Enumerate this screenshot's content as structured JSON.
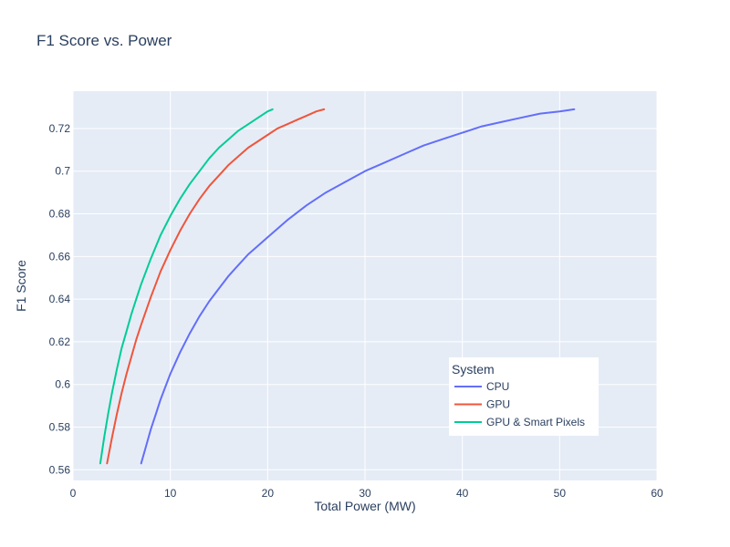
{
  "chart_data": {
    "type": "line",
    "title": "F1 Score vs. Power",
    "xlabel": "Total Power (MW)",
    "ylabel": "F1 Score",
    "xlim": [
      0,
      60
    ],
    "ylim": [
      0.555,
      0.7375
    ],
    "x_ticks": [
      0,
      10,
      20,
      30,
      40,
      50,
      60
    ],
    "x_tick_labels": [
      "0",
      "10",
      "20",
      "30",
      "40",
      "50",
      "60"
    ],
    "y_ticks": [
      0.56,
      0.58,
      0.6,
      0.62,
      0.64,
      0.66,
      0.68,
      0.7,
      0.72
    ],
    "y_tick_labels": [
      "0.56",
      "0.58",
      "0.6",
      "0.62",
      "0.64",
      "0.66",
      "0.68",
      "0.7",
      "0.72"
    ],
    "grid": true,
    "legend": {
      "title": "System",
      "placement": "bottom-right"
    },
    "background_color": "#e5ecf6",
    "series": [
      {
        "name": "CPU",
        "color": "#636efa",
        "x": [
          7.0,
          7.5,
          8.0,
          8.5,
          9.0,
          9.5,
          10.0,
          10.5,
          11.0,
          12.0,
          13.0,
          14.0,
          15.0,
          16.0,
          17.0,
          18.0,
          19.0,
          20.0,
          22.0,
          24.0,
          26.0,
          28.0,
          30.0,
          32.0,
          34.0,
          36.0,
          38.0,
          40.0,
          42.0,
          44.0,
          46.0,
          48.0,
          50.0,
          51.5
        ],
        "y": [
          0.563,
          0.571,
          0.579,
          0.586,
          0.593,
          0.599,
          0.605,
          0.61,
          0.615,
          0.624,
          0.632,
          0.639,
          0.645,
          0.651,
          0.656,
          0.661,
          0.665,
          0.669,
          0.677,
          0.684,
          0.69,
          0.695,
          0.7,
          0.704,
          0.708,
          0.712,
          0.715,
          0.718,
          0.721,
          0.723,
          0.725,
          0.727,
          0.728,
          0.729
        ]
      },
      {
        "name": "GPU",
        "color": "#ef553b",
        "x": [
          3.5,
          4.0,
          4.5,
          5.0,
          5.5,
          6.0,
          6.5,
          7.0,
          8.0,
          9.0,
          10.0,
          11.0,
          12.0,
          13.0,
          14.0,
          15.0,
          16.0,
          17.0,
          18.0,
          19.0,
          20.0,
          21.0,
          22.0,
          23.0,
          24.0,
          25.0,
          25.8
        ],
        "y": [
          0.563,
          0.575,
          0.586,
          0.596,
          0.605,
          0.613,
          0.621,
          0.628,
          0.641,
          0.653,
          0.663,
          0.672,
          0.68,
          0.687,
          0.693,
          0.698,
          0.703,
          0.707,
          0.711,
          0.714,
          0.717,
          0.72,
          0.722,
          0.724,
          0.726,
          0.728,
          0.729
        ]
      },
      {
        "name": "GPU & Smart Pixels",
        "color": "#00cc96",
        "x": [
          2.8,
          3.2,
          3.6,
          4.0,
          4.5,
          5.0,
          5.5,
          6.0,
          6.5,
          7.0,
          8.0,
          9.0,
          10.0,
          11.0,
          12.0,
          13.0,
          14.0,
          15.0,
          16.0,
          17.0,
          18.0,
          19.0,
          20.0,
          20.5
        ],
        "y": [
          0.563,
          0.575,
          0.586,
          0.596,
          0.607,
          0.617,
          0.625,
          0.633,
          0.64,
          0.647,
          0.659,
          0.67,
          0.679,
          0.687,
          0.694,
          0.7,
          0.706,
          0.711,
          0.715,
          0.719,
          0.722,
          0.725,
          0.728,
          0.729
        ]
      }
    ]
  }
}
